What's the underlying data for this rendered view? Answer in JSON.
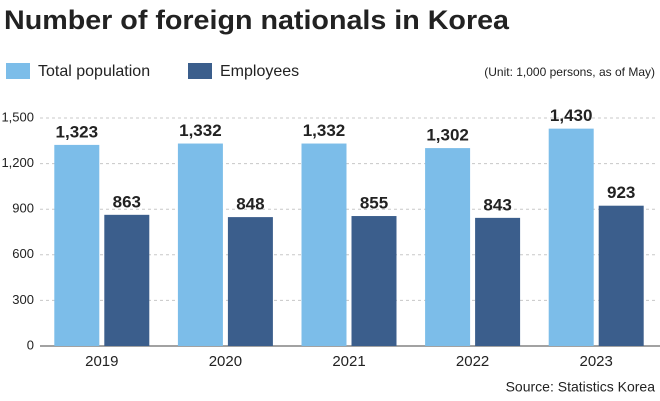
{
  "chart_data": {
    "type": "bar",
    "title": "Number of foreign nationals in Korea",
    "subtitle": "(Unit: 1,000 persons,  as of May)",
    "source": "Source: Statistics Korea",
    "categories": [
      "2019",
      "2020",
      "2021",
      "2022",
      "2023"
    ],
    "series": [
      {
        "name": "Total population",
        "color": "#7cbde9",
        "values": [
          1323,
          1332,
          1332,
          1302,
          1430
        ],
        "value_labels": [
          "1,323",
          "1,332",
          "1,332",
          "1,302",
          "1,430"
        ]
      },
      {
        "name": "Employees",
        "color": "#3b5e8c",
        "values": [
          863,
          848,
          855,
          843,
          923
        ]
      }
    ],
    "ylim": [
      0,
      1500
    ],
    "yticks": [
      0,
      300,
      600,
      900,
      {
        "value": 1200,
        "label": "1,200"
      },
      {
        "value": 1500,
        "label": "1,500"
      }
    ],
    "grid": true
  }
}
